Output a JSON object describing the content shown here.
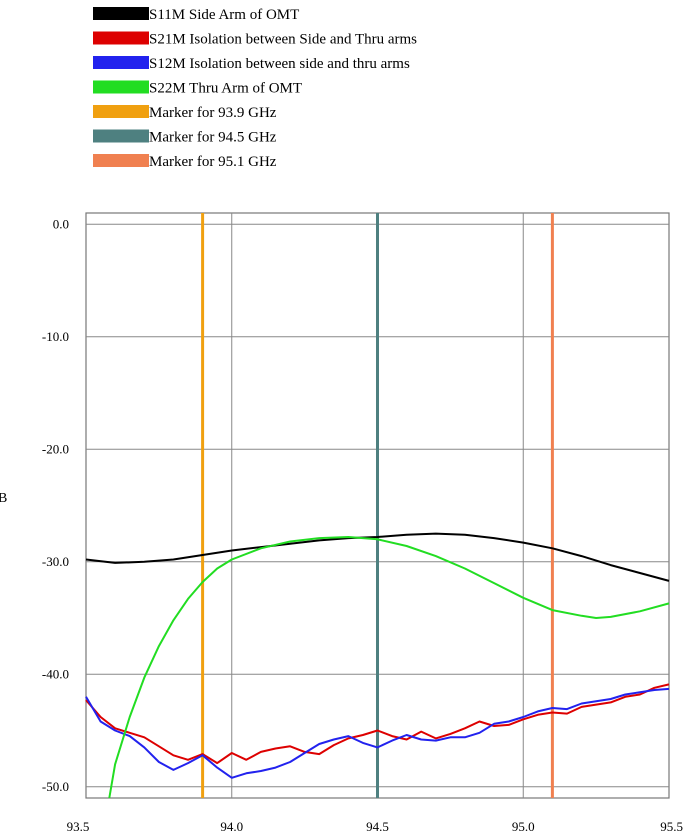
{
  "chart_data": {
    "type": "line",
    "title": "",
    "xlabel": "",
    "ylabel": "dB",
    "xlim": [
      93.5,
      95.5
    ],
    "ylim": [
      -51,
      1
    ],
    "grid": true,
    "legend_position": "top-left",
    "x_ticks": [
      93.5,
      94.0,
      94.5,
      95.0,
      95.5
    ],
    "x_tick_labels": [
      "93.5",
      "94.0",
      "94.5",
      "95.0",
      "95.5"
    ],
    "y_ticks": [
      0,
      -10,
      -20,
      -30,
      -40,
      -50
    ],
    "y_tick_labels": [
      "0.0",
      "-10.0",
      "-20.0",
      "-30.0",
      "-40.0",
      "-50.0"
    ],
    "legend": [
      {
        "label": "S11M Side Arm of OMT",
        "color": "#000000"
      },
      {
        "label": "S21M Isolation between Side and Thru arms",
        "color": "#dd0000"
      },
      {
        "label": "S12M Isolation between side and thru arms",
        "color": "#2222ee"
      },
      {
        "label": "S22M Thru Arm of OMT",
        "color": "#22dd22"
      },
      {
        "label": "Marker for 93.9 GHz",
        "color": "#f0a010"
      },
      {
        "label": "Marker for 94.5 GHz",
        "color": "#4e8080"
      },
      {
        "label": "Marker for 95.1 GHz",
        "color": "#f08050"
      }
    ],
    "markers": [
      {
        "x": 93.9,
        "color": "#f0a010"
      },
      {
        "x": 94.5,
        "color": "#4e8080"
      },
      {
        "x": 95.1,
        "color": "#f08050"
      }
    ],
    "series": [
      {
        "name": "S11M Side Arm of OMT",
        "color": "#000000",
        "x": [
          93.5,
          93.6,
          93.7,
          93.8,
          93.9,
          94.0,
          94.1,
          94.2,
          94.3,
          94.4,
          94.5,
          94.6,
          94.7,
          94.8,
          94.9,
          95.0,
          95.1,
          95.2,
          95.3,
          95.4,
          95.5
        ],
        "y": [
          -29.8,
          -30.1,
          -30.0,
          -29.8,
          -29.4,
          -29.0,
          -28.7,
          -28.4,
          -28.1,
          -27.9,
          -27.8,
          -27.6,
          -27.5,
          -27.6,
          -27.9,
          -28.3,
          -28.8,
          -29.5,
          -30.3,
          -31.0,
          -31.7
        ]
      },
      {
        "name": "S21M Isolation between Side and Thru arms",
        "color": "#dd0000",
        "x": [
          93.5,
          93.55,
          93.6,
          93.65,
          93.7,
          93.75,
          93.8,
          93.85,
          93.9,
          93.95,
          94.0,
          94.05,
          94.1,
          94.15,
          94.2,
          94.25,
          94.3,
          94.35,
          94.4,
          94.45,
          94.5,
          94.55,
          94.6,
          94.65,
          94.7,
          94.75,
          94.8,
          94.85,
          94.9,
          94.95,
          95.0,
          95.05,
          95.1,
          95.15,
          95.2,
          95.25,
          95.3,
          95.35,
          95.4,
          95.45,
          95.5
        ],
        "y": [
          -42.3,
          -43.8,
          -44.8,
          -45.2,
          -45.6,
          -46.4,
          -47.2,
          -47.6,
          -47.1,
          -47.9,
          -47.0,
          -47.6,
          -46.9,
          -46.6,
          -46.4,
          -46.9,
          -47.1,
          -46.3,
          -45.7,
          -45.4,
          -45.0,
          -45.5,
          -45.8,
          -45.1,
          -45.7,
          -45.3,
          -44.8,
          -44.2,
          -44.6,
          -44.5,
          -44.0,
          -43.6,
          -43.4,
          -43.5,
          -42.9,
          -42.7,
          -42.5,
          -42.0,
          -41.8,
          -41.2,
          -40.9
        ]
      },
      {
        "name": "S12M Isolation between side and thru arms",
        "color": "#2222ee",
        "x": [
          93.5,
          93.55,
          93.6,
          93.65,
          93.7,
          93.75,
          93.8,
          93.85,
          93.9,
          93.95,
          94.0,
          94.05,
          94.1,
          94.15,
          94.2,
          94.25,
          94.3,
          94.35,
          94.4,
          94.45,
          94.5,
          94.55,
          94.6,
          94.65,
          94.7,
          94.75,
          94.8,
          94.85,
          94.9,
          94.95,
          95.0,
          95.05,
          95.1,
          95.15,
          95.2,
          95.25,
          95.3,
          95.35,
          95.4,
          95.45,
          95.5
        ],
        "y": [
          -42.0,
          -44.2,
          -45.0,
          -45.5,
          -46.5,
          -47.8,
          -48.5,
          -47.9,
          -47.2,
          -48.3,
          -49.2,
          -48.8,
          -48.6,
          -48.3,
          -47.8,
          -47.0,
          -46.2,
          -45.8,
          -45.5,
          -46.1,
          -46.5,
          -45.9,
          -45.4,
          -45.8,
          -45.9,
          -45.6,
          -45.6,
          -45.2,
          -44.4,
          -44.2,
          -43.8,
          -43.3,
          -43.0,
          -43.1,
          -42.6,
          -42.4,
          -42.2,
          -41.8,
          -41.6,
          -41.4,
          -41.3
        ]
      },
      {
        "name": "S22M Thru Arm of OMT",
        "color": "#22dd22",
        "x": [
          93.58,
          93.6,
          93.65,
          93.7,
          93.75,
          93.8,
          93.85,
          93.9,
          93.95,
          94.0,
          94.1,
          94.2,
          94.3,
          94.4,
          94.5,
          94.6,
          94.7,
          94.8,
          94.9,
          95.0,
          95.1,
          95.2,
          95.25,
          95.3,
          95.4,
          95.5
        ],
        "y": [
          -51.0,
          -48.0,
          -43.8,
          -40.3,
          -37.5,
          -35.2,
          -33.3,
          -31.8,
          -30.6,
          -29.8,
          -28.8,
          -28.2,
          -27.9,
          -27.8,
          -28.0,
          -28.6,
          -29.5,
          -30.6,
          -31.9,
          -33.2,
          -34.3,
          -34.8,
          -35.0,
          -34.9,
          -34.4,
          -33.7
        ]
      }
    ]
  }
}
